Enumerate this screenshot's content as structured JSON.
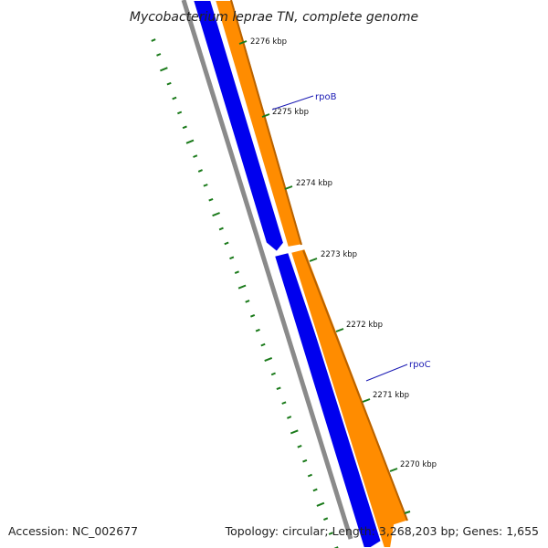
{
  "title": "Mycobacterium leprae TN, complete genome",
  "footer": {
    "accession": "Accession: NC_002677",
    "summary": "Topology: circular; Length: 3,268,203 bp; Genes: 1,655"
  },
  "colors": {
    "backbone": "#8a8a8a",
    "forward_strand": "#0000ee",
    "reverse_strand": "#ff8c00",
    "reverse_edge": "#b86200",
    "ticks": "#1a7a1a",
    "gene_label": "#1a1ab4"
  },
  "scale": {
    "ticks": [
      {
        "label": "2276 kbp"
      },
      {
        "label": "2275 kbp"
      },
      {
        "label": "2274 kbp"
      },
      {
        "label": "2273 kbp"
      },
      {
        "label": "2272 kbp"
      },
      {
        "label": "2271 kbp"
      },
      {
        "label": "2270 kbp"
      }
    ]
  },
  "genes": [
    {
      "name": "rpoB"
    },
    {
      "name": "rpoC"
    }
  ]
}
